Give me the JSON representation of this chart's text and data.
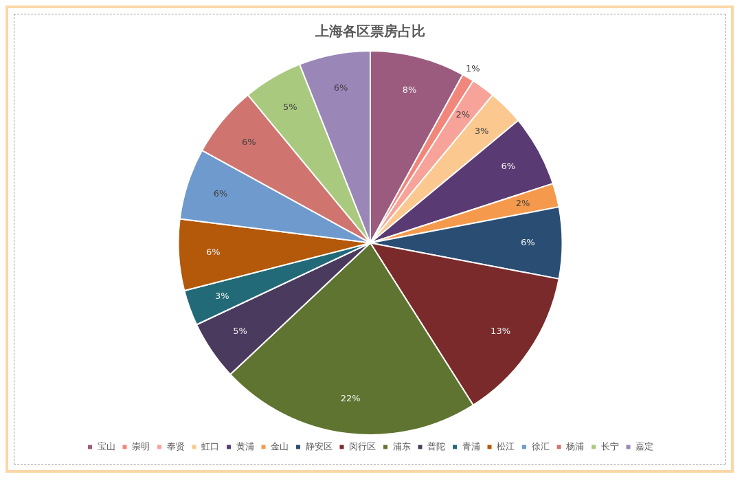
{
  "chart_data": {
    "type": "pie",
    "title": "上海各区票房占比",
    "categories": [
      "宝山",
      "崇明",
      "奉贤",
      "虹口",
      "黄浦",
      "金山",
      "静安区",
      "闵行区",
      "浦东",
      "普陀",
      "青浦",
      "松江",
      "徐汇",
      "杨浦",
      "长宁",
      "嘉定"
    ],
    "values": [
      8,
      1,
      2,
      3,
      6,
      2,
      6,
      13,
      22,
      5,
      3,
      6,
      6,
      6,
      5,
      6
    ],
    "value_labels": [
      "8%",
      "1%",
      "2%",
      "3%",
      "6%",
      "2%",
      "6%",
      "13%",
      "22%",
      "5%",
      "3%",
      "6%",
      "6%",
      "6%",
      "5%",
      "6%"
    ],
    "colors": [
      "#9b5b7e",
      "#f0877a",
      "#f7a39a",
      "#fbc98f",
      "#5a3a72",
      "#f59a4d",
      "#2a4d73",
      "#7a2a2a",
      "#5f7430",
      "#4a3a5e",
      "#236a78",
      "#b4580a",
      "#6f9acd",
      "#d07470",
      "#a9c97f",
      "#9b86b8"
    ],
    "legend": "bottom"
  }
}
